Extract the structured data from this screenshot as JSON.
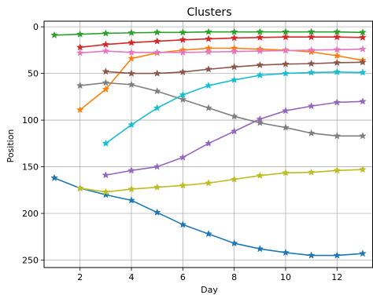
{
  "chart_data": {
    "type": "line",
    "title": "Clusters",
    "xlabel": "Day",
    "ylabel": "Position",
    "xlim": [
      0.6,
      13.4
    ],
    "ylim": [
      258,
      -6
    ],
    "y_inverted": true,
    "grid": true,
    "marker": "star",
    "xticks": [
      2,
      4,
      6,
      8,
      10,
      12
    ],
    "yticks": [
      0,
      50,
      100,
      150,
      200,
      250
    ],
    "series": [
      {
        "color": "#1f77b4",
        "x": [
          1,
          2,
          3,
          4,
          5,
          6,
          7,
          8,
          9,
          10,
          11,
          12,
          13
        ],
        "y": [
          162,
          173,
          180,
          186,
          199,
          212,
          222,
          232,
          238,
          242,
          245,
          245,
          243
        ]
      },
      {
        "color": "#ff7f0e",
        "x": [
          2,
          3,
          4,
          5,
          6,
          7,
          8,
          9,
          10,
          11,
          12,
          13
        ],
        "y": [
          89,
          67,
          34,
          28,
          25,
          23,
          23,
          24,
          25,
          27,
          31,
          36
        ]
      },
      {
        "color": "#2ca02c",
        "x": [
          1,
          2,
          3,
          4,
          5,
          6,
          7,
          8,
          9,
          10,
          11,
          12,
          13
        ],
        "y": [
          9,
          8,
          7,
          6.5,
          6,
          6,
          5.5,
          5.5,
          5.5,
          5.5,
          5.5,
          5.5,
          6
        ]
      },
      {
        "color": "#d62728",
        "x": [
          2,
          3,
          4,
          5,
          6,
          7,
          8,
          9,
          10,
          11,
          12,
          13
        ],
        "y": [
          22,
          19,
          17,
          15.5,
          14,
          13,
          12,
          11.5,
          11,
          11,
          11,
          11.5
        ]
      },
      {
        "color": "#9467bd",
        "x": [
          3,
          4,
          5,
          6,
          7,
          8,
          9,
          10,
          11,
          12,
          13
        ],
        "y": [
          159,
          154,
          150,
          140,
          125,
          112,
          99,
          90,
          85,
          81,
          80
        ]
      },
      {
        "color": "#8c564b",
        "x": [
          3,
          4,
          5,
          6,
          7,
          8,
          9,
          10,
          11,
          12,
          13
        ],
        "y": [
          48,
          50,
          50,
          48.5,
          45.5,
          43,
          41,
          40,
          39.5,
          38.5,
          38
        ]
      },
      {
        "color": "#e377c2",
        "x": [
          2,
          3,
          4,
          5,
          6,
          7,
          8,
          9,
          10,
          11,
          12,
          13
        ],
        "y": [
          28,
          26,
          27.5,
          27.5,
          27.5,
          27,
          26.5,
          26,
          25.5,
          25,
          24.5,
          24
        ]
      },
      {
        "color": "#7f7f7f",
        "x": [
          2,
          3,
          4,
          5,
          6,
          7,
          8,
          9,
          10,
          11,
          12,
          13
        ],
        "y": [
          63,
          60,
          62,
          69,
          78,
          87,
          96,
          103,
          108,
          114,
          117,
          117
        ]
      },
      {
        "color": "#bcbd22",
        "x": [
          2,
          3,
          4,
          5,
          6,
          7,
          8,
          9,
          10,
          11,
          12,
          13
        ],
        "y": [
          173,
          177,
          174,
          172,
          170,
          167.5,
          163.5,
          159.5,
          156.5,
          156,
          154,
          153
        ]
      },
      {
        "color": "#17becf",
        "x": [
          3,
          4,
          5,
          6,
          7,
          8,
          9,
          10,
          11,
          12,
          13
        ],
        "y": [
          125,
          105,
          87,
          73,
          63,
          57,
          52,
          50,
          49,
          48.5,
          49
        ]
      }
    ]
  }
}
